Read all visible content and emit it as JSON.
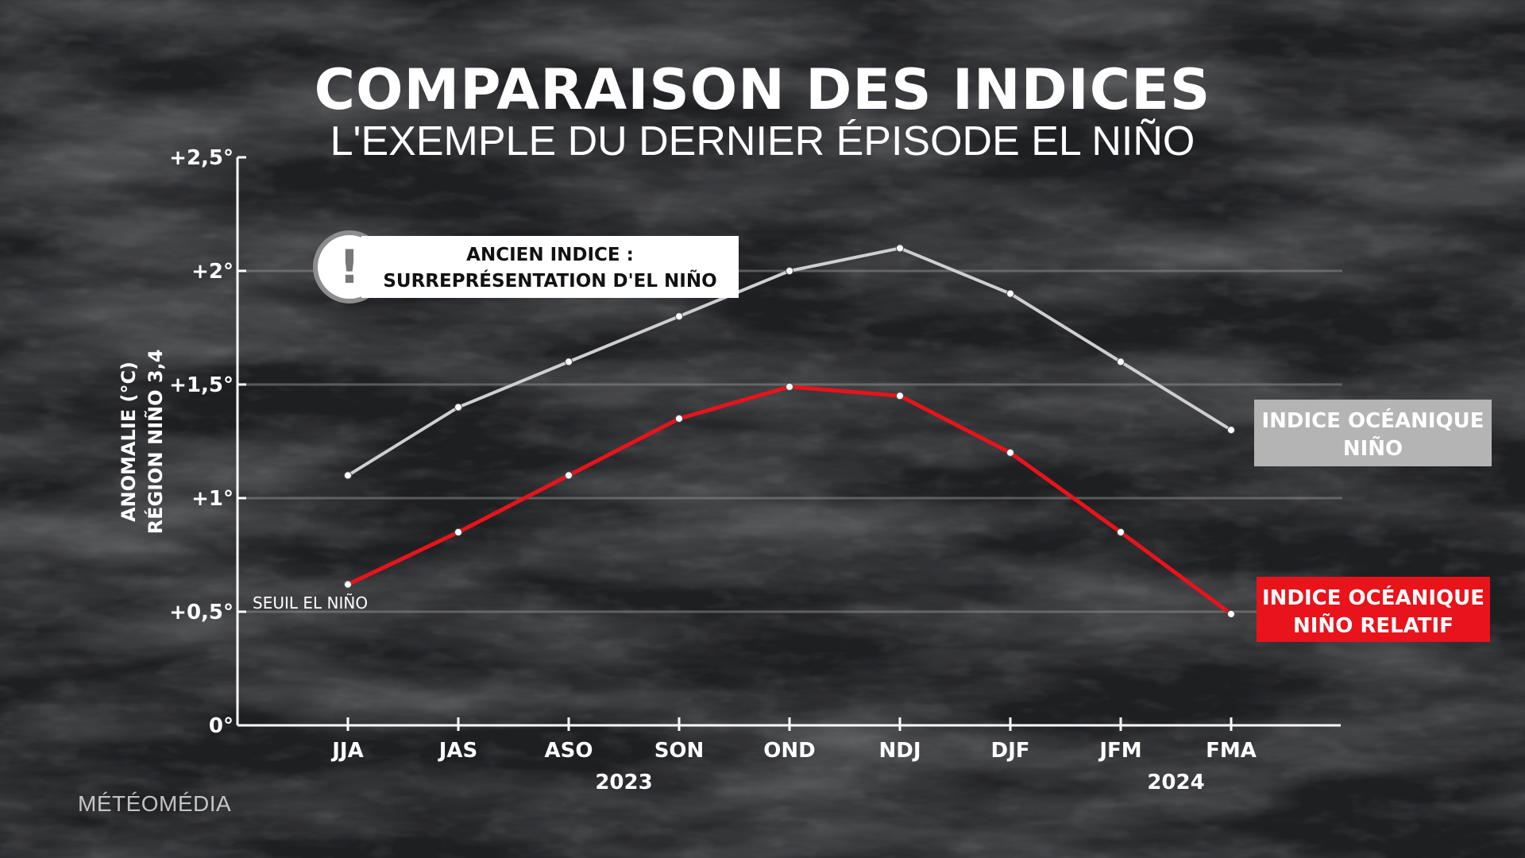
{
  "title": "COMPARAISON DES INDICES",
  "subtitle": "L'EXEMPLE DU DERNIER ÉPISODE EL NIÑO",
  "logo": "MÉTÉOMÉDIA",
  "callout": {
    "line1": "ANCIEN INDICE :",
    "line2": "SURREPRÉSENTATION D'EL NIÑO",
    "icon": "exclamation-icon",
    "icon_glyph": "!"
  },
  "legend": {
    "grey": {
      "line1": "INDICE OCÉANIQUE",
      "line2": "NIÑO",
      "color": "#b4b4b4"
    },
    "red": {
      "line1": "INDICE OCÉANIQUE",
      "line2": "NIÑO RELATIF",
      "color": "#e8131b"
    }
  },
  "colors": {
    "grey_series": "#cfcfcf",
    "red_series": "#e8131b",
    "gridline": "#8a8a8a",
    "axis": "#ffffff"
  },
  "chart_data": {
    "type": "line",
    "categories": [
      "JJA",
      "JAS",
      "ASO",
      "SON",
      "OND",
      "NDJ",
      "DJF",
      "JFM",
      "FMA"
    ],
    "year_labels": [
      {
        "label": "2023",
        "between": [
          "ASO",
          "SON"
        ]
      },
      {
        "label": "2024",
        "between": [
          "JFM",
          "FMA"
        ]
      }
    ],
    "series": [
      {
        "name": "INDICE OCÉANIQUE NIÑO",
        "color": "#cfcfcf",
        "values": [
          1.1,
          1.4,
          1.6,
          1.8,
          2.0,
          2.1,
          1.9,
          1.6,
          1.3
        ]
      },
      {
        "name": "INDICE OCÉANIQUE NIÑO RELATIF",
        "color": "#e8131b",
        "values": [
          0.62,
          0.85,
          1.1,
          1.35,
          1.49,
          1.45,
          1.2,
          0.85,
          0.49
        ]
      }
    ],
    "ylabel_line1": "ANOMALIE (°C)",
    "ylabel_line2": "RÉGION NIÑO 3,4",
    "ylim": [
      0,
      2.5
    ],
    "yticks": [
      {
        "value": 0,
        "label": "0°"
      },
      {
        "value": 0.5,
        "label": "+0,5°"
      },
      {
        "value": 1,
        "label": "+1°"
      },
      {
        "value": 1.5,
        "label": "+1,5°"
      },
      {
        "value": 2,
        "label": "+2°"
      },
      {
        "value": 2.5,
        "label": "+2,5°"
      }
    ],
    "gridlines": [
      0.5,
      1,
      1.5,
      2
    ],
    "threshold": {
      "value": 0.5,
      "label": "SEUIL EL NIÑO"
    }
  }
}
